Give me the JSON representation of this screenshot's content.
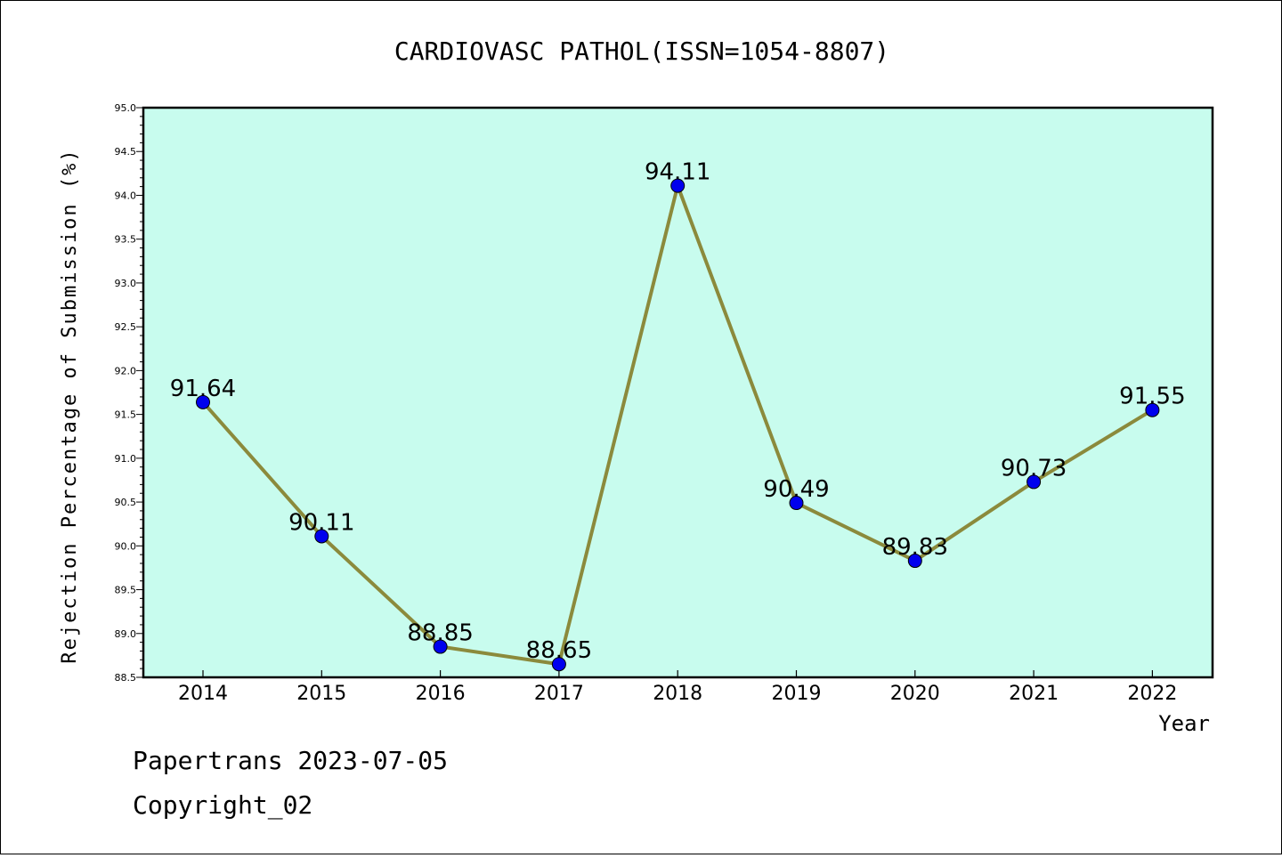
{
  "chart_data": {
    "type": "line",
    "title": "CARDIOVASC PATHOL(ISSN=1054-8807)",
    "xlabel": "Year",
    "ylabel": "Rejection Percentage of Submission (%)",
    "categories": [
      "2014",
      "2015",
      "2016",
      "2017",
      "2018",
      "2019",
      "2020",
      "2021",
      "2022"
    ],
    "series": [
      {
        "values": [
          91.64,
          90.11,
          88.85,
          88.65,
          94.11,
          90.49,
          89.83,
          90.73,
          91.55
        ]
      }
    ],
    "data_labels": [
      "91.64",
      "90.11",
      "88.85",
      "88.65",
      "94.11",
      "90.49",
      "89.83",
      "90.73",
      "91.55"
    ],
    "ylim": [
      88.5,
      95.0
    ],
    "yticks": [
      "88.5",
      "89.0",
      "89.5",
      "90.0",
      "90.5",
      "91.0",
      "91.5",
      "92.0",
      "92.5",
      "93.0",
      "93.5",
      "94.0",
      "94.5",
      "95.0"
    ],
    "grid": false,
    "legend": "none",
    "colors": {
      "plot_background": "#c8fcee",
      "line": "#8b8a3c",
      "marker": "#0000ee"
    }
  },
  "footer": {
    "line1": "Papertrans 2023-07-05",
    "line2": "Copyright_02"
  }
}
